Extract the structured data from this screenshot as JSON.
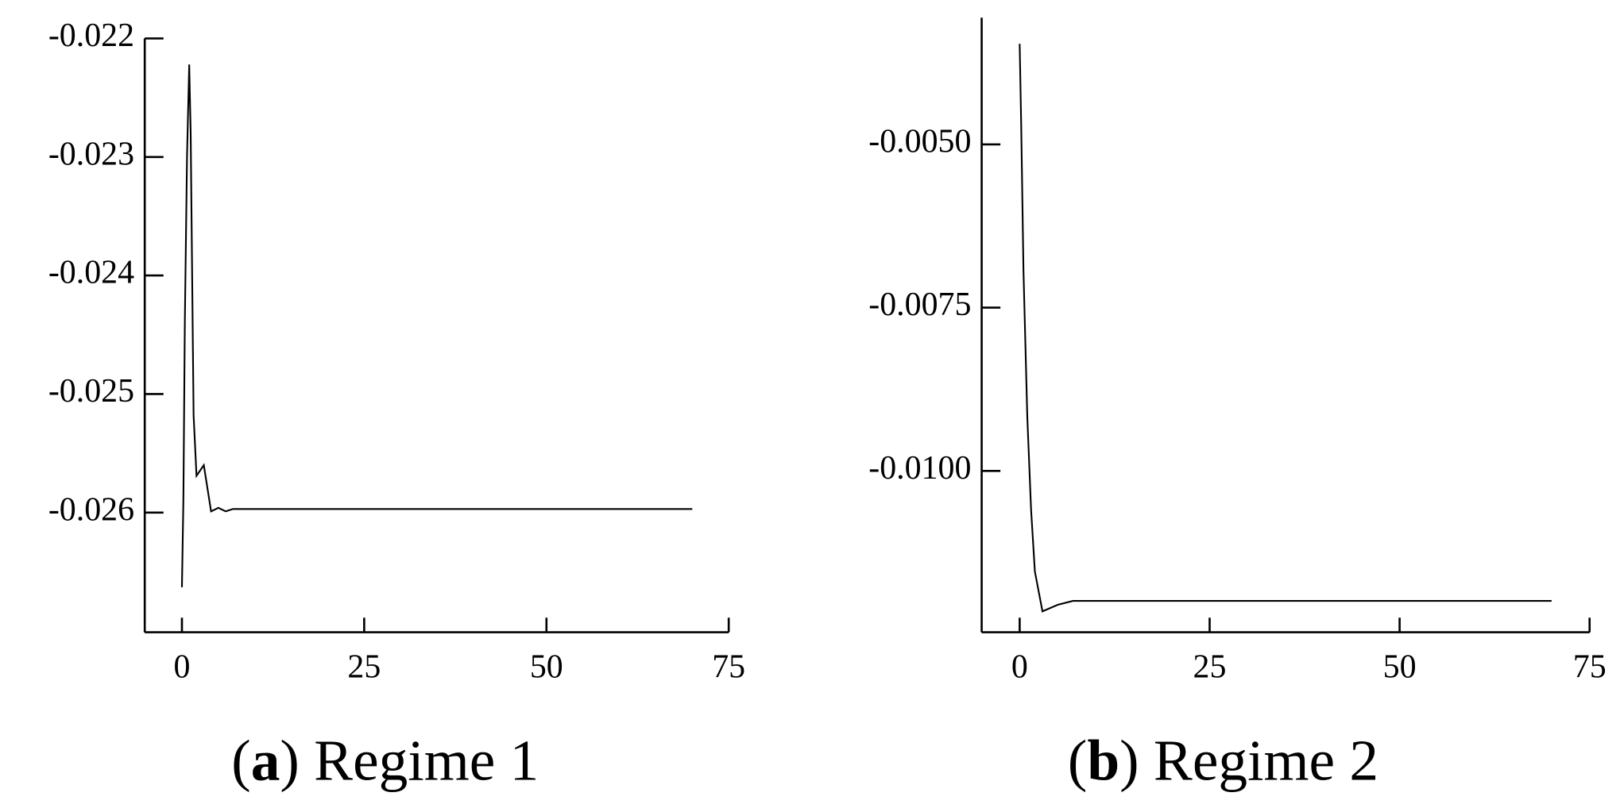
{
  "chart_data": [
    {
      "type": "line",
      "caption": [
        "(",
        "a",
        ") Regime 1"
      ],
      "x": [
        0,
        0.2,
        0.4,
        0.7,
        1,
        1.2,
        1.6,
        2,
        3,
        4,
        5,
        6,
        7,
        70
      ],
      "series": [
        {
          "color": "#000000",
          "values": [
            -0.02663,
            -0.02589,
            -0.02439,
            -0.02299,
            -0.02222,
            -0.0228,
            -0.02518,
            -0.02569,
            -0.0256,
            -0.02599,
            -0.02596,
            -0.02599,
            -0.02597,
            -0.02597
          ]
        }
      ],
      "xlim": [
        -5.1,
        75
      ],
      "xticks": [
        0,
        25,
        50,
        75
      ],
      "ylim": [
        -0.02701,
        -0.022
      ],
      "yticks": [
        -0.022,
        -0.023,
        -0.024,
        -0.025,
        -0.026
      ]
    },
    {
      "type": "line",
      "caption": [
        "(",
        "b",
        ") Regime 2"
      ],
      "x": [
        0,
        0.2,
        0.5,
        1,
        1.5,
        2,
        3,
        5,
        7,
        70
      ],
      "series": [
        {
          "color": "#000000",
          "values": [
            -0.00346,
            -0.0047,
            -0.00693,
            -0.00916,
            -0.01059,
            -0.01154,
            -0.01215,
            -0.01205,
            -0.01199,
            -0.01199
          ]
        }
      ],
      "xlim": [
        -5,
        75
      ],
      "xticks": [
        0,
        25,
        50,
        75
      ],
      "ylim": [
        -0.01247,
        -0.00306
      ],
      "yticks": [
        {
          "value": -0.005,
          "label": "-0.0050"
        },
        {
          "value": -0.0075,
          "label": "-0.0075"
        },
        {
          "value": -0.01,
          "label": "-0.0100"
        }
      ]
    }
  ]
}
